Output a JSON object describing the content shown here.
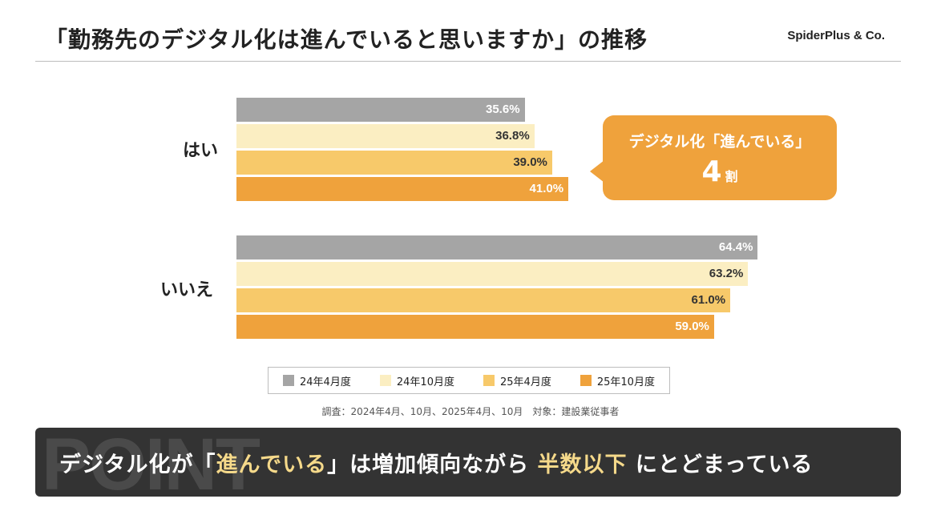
{
  "header": {
    "title": "「勤務先のデジタル化は進んでいると思いますか」の推移",
    "brand": "SpiderPlus & Co."
  },
  "chart_data": {
    "type": "bar",
    "orientation": "horizontal",
    "categories": [
      "はい",
      "いいえ"
    ],
    "series": [
      {
        "name": "24年4月度",
        "color": "#a5a5a5",
        "label_color": "#ffffff",
        "values": [
          35.6,
          64.4
        ]
      },
      {
        "name": "24年10月度",
        "color": "#fbeec2",
        "label_color": "#333333",
        "values": [
          36.8,
          63.2
        ]
      },
      {
        "name": "25年4月度",
        "color": "#f7c96a",
        "label_color": "#333333",
        "values": [
          39.0,
          61.0
        ]
      },
      {
        "name": "25年10月度",
        "color": "#efa23c",
        "label_color": "#ffffff",
        "values": [
          41.0,
          59.0
        ]
      }
    ],
    "value_suffix": "%",
    "xlim": [
      0,
      100
    ],
    "grid": false,
    "legend_position": "bottom"
  },
  "callout": {
    "top": "デジタル化「進んでいる」",
    "big": "4",
    "unit": "割"
  },
  "source": "調査：2024年4月、10月、2025年4月、10月　対象：建設業従事者",
  "point": {
    "bg_word": "POINT",
    "parts": [
      "デジタル化が「",
      "進んでいる",
      "」は増加傾向ながら ",
      "半数以下",
      " にとどまっている"
    ]
  }
}
